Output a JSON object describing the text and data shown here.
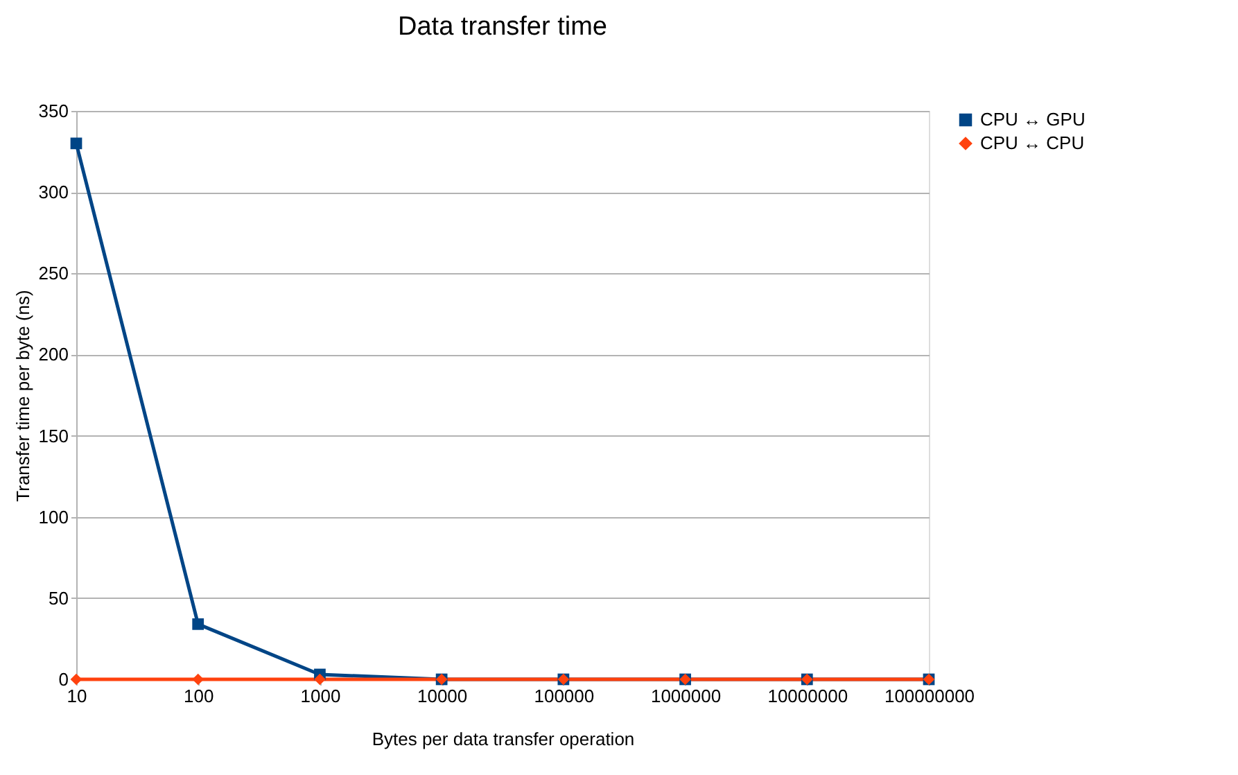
{
  "chart_data": {
    "type": "line",
    "title": "Data transfer time",
    "xlabel": "Bytes per data transfer operation",
    "ylabel": "Transfer time per byte (ns)",
    "categories": [
      "10",
      "100",
      "1000",
      "10000",
      "100000",
      "1000000",
      "10000000",
      "100000000"
    ],
    "series": [
      {
        "name": "CPU ↔ GPU",
        "color": "#004586",
        "marker": "square",
        "values": [
          330,
          34,
          3,
          0,
          0,
          0,
          0,
          0
        ]
      },
      {
        "name": "CPU ↔ CPU",
        "color": "#ff420e",
        "marker": "diamond",
        "values": [
          0,
          0,
          0,
          0,
          0,
          0,
          0,
          0
        ]
      }
    ],
    "ylim": [
      0,
      350
    ],
    "yticks": [
      0,
      50,
      100,
      150,
      200,
      250,
      300,
      350
    ],
    "grid": "y",
    "legend": "right",
    "line_style": "solid"
  }
}
